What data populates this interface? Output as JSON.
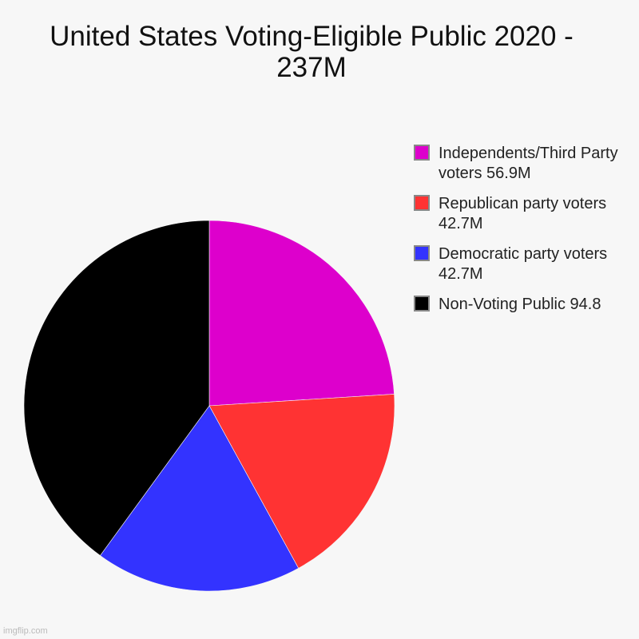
{
  "chart_data": {
    "type": "pie",
    "title": "United States Voting-Eligible Public 2020 - 237M",
    "slices": [
      {
        "label": "Independents/Third Party voters 56.9M",
        "value": 56.9,
        "color": "#dd00cc"
      },
      {
        "label": "Republican party voters 42.7M",
        "value": 42.7,
        "color": "#ff3333"
      },
      {
        "label": "Democratic party voters 42.7M",
        "value": 42.7,
        "color": "#3333ff"
      },
      {
        "label": "Non-Voting Public 94.8",
        "value": 94.8,
        "color": "#000000"
      }
    ],
    "start": "12 o'clock",
    "direction": "clockwise",
    "legend_position": "right"
  },
  "watermark": "imgflip.com"
}
